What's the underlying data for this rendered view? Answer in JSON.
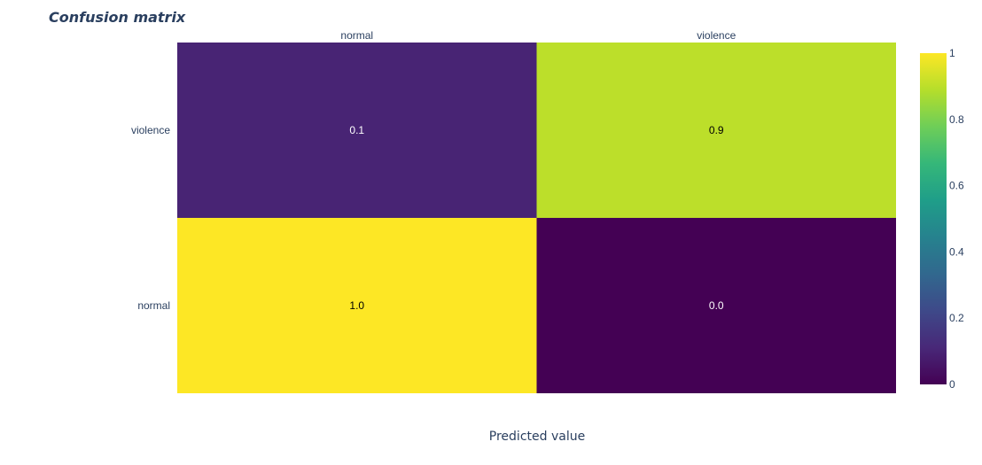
{
  "chart_data": {
    "type": "heatmap",
    "title": "Confusion matrix",
    "xlabel": "Predicted value",
    "ylabel": "",
    "x_categories": [
      "normal",
      "violence"
    ],
    "y_categories": [
      "violence",
      "normal"
    ],
    "z": [
      [
        0.1,
        0.9
      ],
      [
        1.0,
        0.0
      ]
    ],
    "cell_labels": [
      [
        "0.1",
        "0.9"
      ],
      [
        "1.0",
        "0.0"
      ]
    ],
    "colorscale": "viridis",
    "zrange": [
      0,
      1
    ],
    "colorbar_ticks": [
      "0",
      "0.2",
      "0.4",
      "0.6",
      "0.8",
      "1"
    ],
    "x_axis_side": "top",
    "legend": "colorbar-right"
  },
  "colors": {
    "viridis": [
      "#440154",
      "#482878",
      "#3e4989",
      "#31688e",
      "#26828e",
      "#1f9e89",
      "#35b779",
      "#6ece58",
      "#b5de2b",
      "#fde725"
    ],
    "text": "#2a3f5f"
  }
}
